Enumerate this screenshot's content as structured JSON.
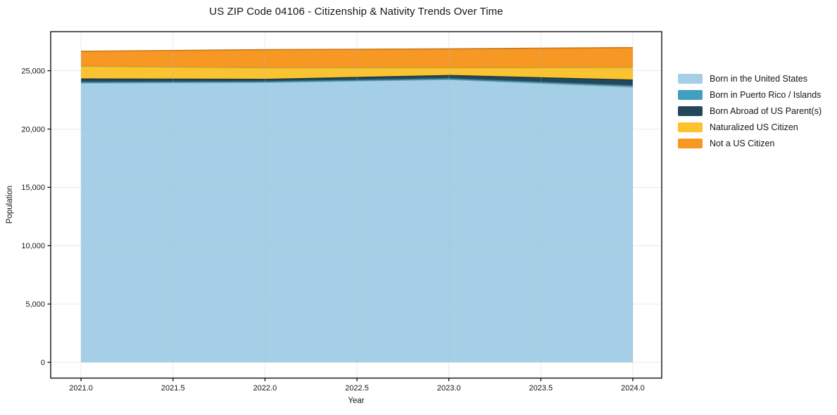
{
  "figure": {
    "title": "US ZIP Code 04106 - Citizenship & Nativity Trends Over Time",
    "background_color": "#ffffff"
  },
  "chart_data": {
    "type": "area",
    "stacked": true,
    "title": "US ZIP Code 04106 - Citizenship & Nativity Trends Over Time",
    "xlabel": "Year",
    "ylabel": "Population",
    "x": [
      2021,
      2022,
      2023,
      2024
    ],
    "series": [
      {
        "name": "Born in the United States",
        "color": "#a4cfe6",
        "values": [
          23950,
          24000,
          24250,
          23600
        ]
      },
      {
        "name": "Born in Puerto Rico / Islands",
        "color": "#41a0bf",
        "values": [
          60,
          55,
          60,
          100
        ]
      },
      {
        "name": "Born Abroad of US Parent(s)",
        "color": "#24485a",
        "values": [
          280,
          200,
          280,
          500
        ]
      },
      {
        "name": "Naturalized US Citizen",
        "color": "#fcc32e",
        "values": [
          1100,
          1000,
          670,
          1080
        ]
      },
      {
        "name": "Not a US Citizen",
        "color": "#f79724",
        "values": [
          1280,
          1550,
          1610,
          1700
        ]
      }
    ],
    "stack_totals": [
      26670,
      26805,
      26870,
      26980
    ],
    "xlim": [
      2020.835,
      2024.157
    ],
    "ylim": [
      -1350,
      28350
    ],
    "x_ticks": [
      {
        "v": 2021.0,
        "label": "2021.0"
      },
      {
        "v": 2021.5,
        "label": "2021.5"
      },
      {
        "v": 2022.0,
        "label": "2022.0"
      },
      {
        "v": 2022.5,
        "label": "2022.5"
      },
      {
        "v": 2023.0,
        "label": "2023.0"
      },
      {
        "v": 2023.5,
        "label": "2023.5"
      },
      {
        "v": 2024.0,
        "label": "2024.0"
      }
    ],
    "y_ticks": [
      {
        "v": 0,
        "label": "0"
      },
      {
        "v": 5000,
        "label": "5,000"
      },
      {
        "v": 10000,
        "label": "10,000"
      },
      {
        "v": 15000,
        "label": "15,000"
      },
      {
        "v": 20000,
        "label": "20,000"
      },
      {
        "v": 25000,
        "label": "25,000"
      }
    ],
    "grid": true,
    "legend_position": "right"
  },
  "style": {
    "grid_color": "#bbbbbb",
    "spine_color": "#000000",
    "text_color": "#151515"
  }
}
